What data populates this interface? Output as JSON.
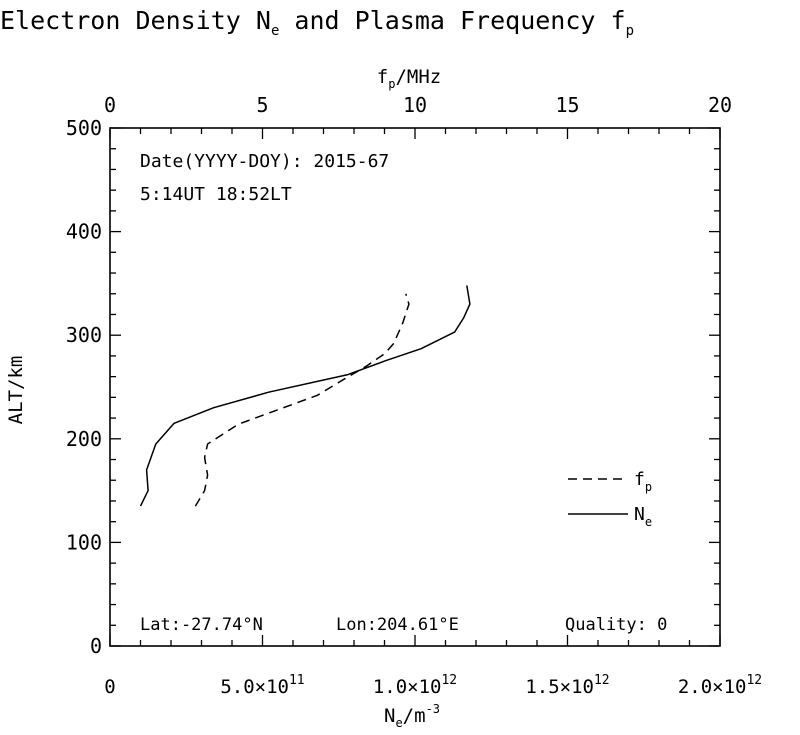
{
  "chart_data": {
    "type": "line",
    "title": "Electron Density N",
    "title_sub": "e",
    "title_mid": " and Plasma Frequency f",
    "title_sub2": "p",
    "ylabel": "ALT/km",
    "ylim": [
      0,
      500
    ],
    "y_ticks": [
      "0",
      "100",
      "200",
      "300",
      "400",
      "500"
    ],
    "y_tick_values": [
      0,
      100,
      200,
      300,
      400,
      500
    ],
    "bottom_axis": {
      "label_main": "N",
      "label_sub": "e",
      "label_unit": "/m",
      "label_sup": "-3",
      "xlim": [
        0,
        2000000000000.0
      ],
      "ticks": [
        {
          "value": 0,
          "mantissa": "0",
          "exp": ""
        },
        {
          "value": 500000000000.0,
          "mantissa": "5.0×10",
          "exp": "11"
        },
        {
          "value": 1000000000000.0,
          "mantissa": "1.0×10",
          "exp": "12"
        },
        {
          "value": 1500000000000.0,
          "mantissa": "1.5×10",
          "exp": "12"
        },
        {
          "value": 2000000000000.0,
          "mantissa": "2.0×10",
          "exp": "12"
        }
      ]
    },
    "top_axis": {
      "label_main": "f",
      "label_sub": "p",
      "label_unit": "/MHz",
      "xlim": [
        0,
        20
      ],
      "ticks": [
        "0",
        "5",
        "10",
        "15",
        "20"
      ],
      "tick_values": [
        0,
        5,
        10,
        15,
        20
      ]
    },
    "annotations": {
      "date": "Date(YYYY-DOY): 2015-67",
      "time": "5:14UT 18:52LT",
      "lat": "Lat:-27.74°N",
      "lon": "Lon:204.61°E",
      "quality": "Quality: 0"
    },
    "legend": {
      "placement": "lower-right",
      "fp_main": "f",
      "fp_sub": "p",
      "ne_main": "N",
      "ne_sub": "e"
    },
    "series": [
      {
        "name": "N_e",
        "style": "solid",
        "axis": "bottom",
        "points": [
          [
            100000000000.0,
            135
          ],
          [
            125000000000.0,
            150
          ],
          [
            120000000000.0,
            170
          ],
          [
            150000000000.0,
            195
          ],
          [
            210000000000.0,
            215
          ],
          [
            340000000000.0,
            230
          ],
          [
            520000000000.0,
            245
          ],
          [
            780000000000.0,
            262
          ],
          [
            900000000000.0,
            275
          ],
          [
            1020000000000.0,
            287
          ],
          [
            1130000000000.0,
            303
          ],
          [
            1160000000000.0,
            317
          ],
          [
            1180000000000.0,
            330
          ],
          [
            1170000000000.0,
            348
          ]
        ]
      },
      {
        "name": "f_p",
        "style": "dashed",
        "axis": "top",
        "points": [
          [
            2.8,
            135
          ],
          [
            3.1,
            150
          ],
          [
            3.2,
            165
          ],
          [
            3.1,
            182
          ],
          [
            3.2,
            195
          ],
          [
            4.2,
            214
          ],
          [
            5.5,
            228
          ],
          [
            6.8,
            242
          ],
          [
            7.7,
            258
          ],
          [
            8.4,
            270
          ],
          [
            9.0,
            282
          ],
          [
            9.3,
            292
          ],
          [
            9.6,
            312
          ],
          [
            9.8,
            330
          ],
          [
            9.7,
            340
          ]
        ]
      }
    ]
  }
}
